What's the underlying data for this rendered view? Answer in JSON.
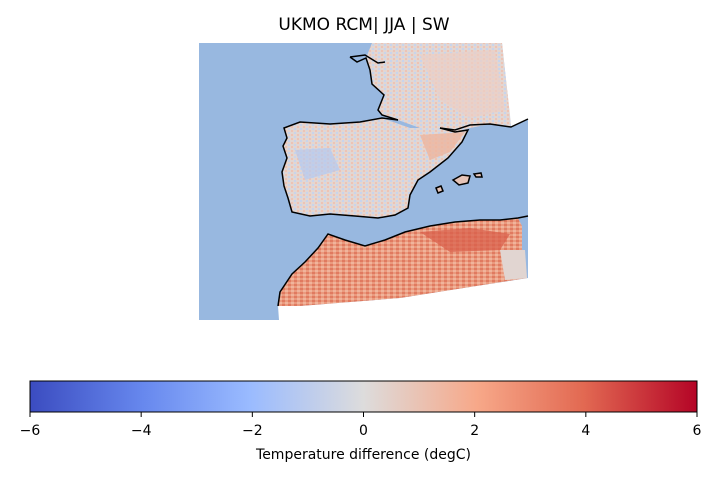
{
  "title": "UKMO RCM| JJA | SW",
  "map": {
    "projection_region": "Iberian Peninsula, southern France, western Mediterranean and north-west Africa",
    "ocean_color": "#98b8e0",
    "coastline_color": "#000000"
  },
  "colorbar": {
    "label": "Temperature difference (degC)",
    "colormap": "coolwarm",
    "vmin": -6,
    "vmax": 6,
    "ticks": [
      {
        "value": -6,
        "label": "−6"
      },
      {
        "value": -4,
        "label": "−4"
      },
      {
        "value": -2,
        "label": "−2"
      },
      {
        "value": 0,
        "label": "0"
      },
      {
        "value": 2,
        "label": "2"
      },
      {
        "value": 4,
        "label": "4"
      },
      {
        "value": 6,
        "label": "6"
      }
    ],
    "stops": [
      {
        "offset": 0,
        "color": "#3b4cc0"
      },
      {
        "offset": 0.17,
        "color": "#6788ee"
      },
      {
        "offset": 0.33,
        "color": "#9abbff"
      },
      {
        "offset": 0.5,
        "color": "#dddcdc"
      },
      {
        "offset": 0.67,
        "color": "#f7a889"
      },
      {
        "offset": 0.83,
        "color": "#e26952"
      },
      {
        "offset": 1,
        "color": "#b40426"
      }
    ]
  }
}
